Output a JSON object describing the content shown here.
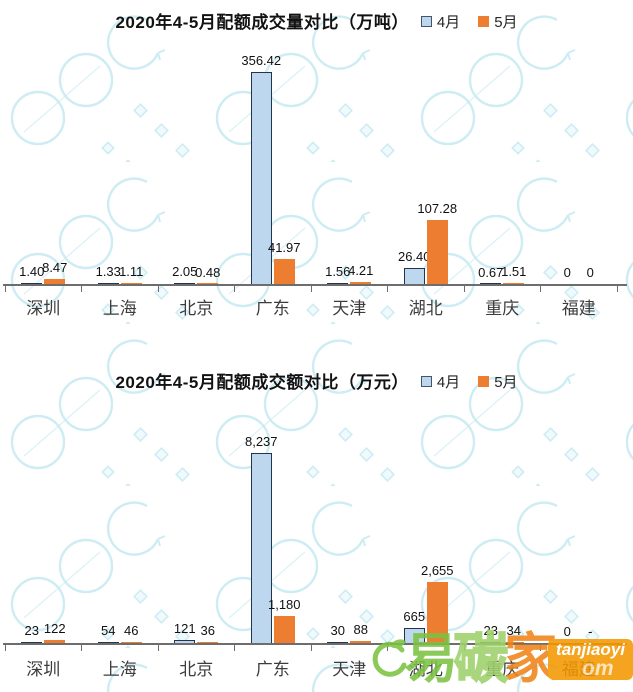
{
  "colors": {
    "april_fill": "#bdd7ee",
    "april_border": "#22354d",
    "may_fill": "#ed7d31",
    "axis": "#6d6d6d",
    "watermark_pattern": "#c4e9f2",
    "brand_green": "#7cc242",
    "brand_orange": "#f39800"
  },
  "watermark": {
    "cn_char_1": "易",
    "cn_char_2": "碳",
    "cn_char_3": "家",
    "en": "tanjiaoyi",
    "suffix": "om"
  },
  "chart_data": [
    {
      "type": "bar",
      "title": "2020年4-5月配额成交量对比（万吨）",
      "unit": "万吨",
      "categories": [
        "深圳",
        "上海",
        "北京",
        "广东",
        "天津",
        "湖北",
        "重庆",
        "福建"
      ],
      "series": [
        {
          "name": "4月",
          "values": [
            1.4,
            1.33,
            2.05,
            356.42,
            1.56,
            26.4,
            0.67,
            0
          ],
          "labels": [
            "1.40",
            "1.33",
            "2.05",
            "356.42",
            "1.56",
            "26.40",
            "0.67",
            "0"
          ]
        },
        {
          "name": "5月",
          "values": [
            8.47,
            1.11,
            0.48,
            41.97,
            4.21,
            107.28,
            1.51,
            0
          ],
          "labels": [
            "8.47",
            "1.11",
            "0.48",
            "41.97",
            "4.21",
            "107.28",
            "1.51",
            "0"
          ]
        }
      ],
      "ylim": [
        0,
        356.42
      ],
      "grid": false,
      "legend_position": "top-right-of-title",
      "data_labels": true
    },
    {
      "type": "bar",
      "title": "2020年4-5月配额成交额对比（万元）",
      "unit": "万元",
      "categories": [
        "深圳",
        "上海",
        "北京",
        "广东",
        "天津",
        "湖北",
        "重庆",
        "福建"
      ],
      "series": [
        {
          "name": "4月",
          "values": [
            23,
            54,
            121,
            8237,
            30,
            665,
            23,
            0
          ],
          "labels": [
            "23",
            "54",
            "121",
            "8,237",
            "30",
            "665",
            "23",
            "0"
          ]
        },
        {
          "name": "5月",
          "values": [
            122,
            46,
            36,
            1180,
            88,
            2655,
            34,
            0
          ],
          "labels": [
            "122",
            "46",
            "36",
            "1,180",
            "88",
            "2,655",
            "34",
            "-"
          ]
        }
      ],
      "ylim": [
        0,
        8237
      ],
      "grid": false,
      "legend_position": "top-right-of-title",
      "data_labels": true
    }
  ]
}
